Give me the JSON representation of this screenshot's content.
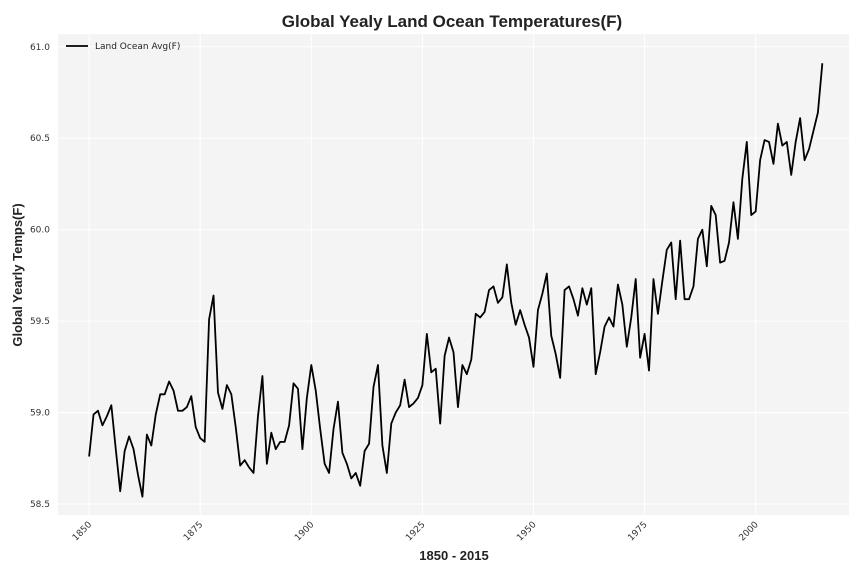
{
  "chart_data": {
    "type": "line",
    "title": "Global Yealy Land Ocean Temperatures(F)",
    "xlabel": "1850 - 2015",
    "ylabel": "Global Yearly Temps(F)",
    "xlim": [
      1843,
      2021
    ],
    "ylim": [
      58.44,
      61.07
    ],
    "xticks": [
      1850,
      1875,
      1900,
      1925,
      1950,
      1975,
      2000
    ],
    "yticks": [
      58.5,
      59.0,
      59.5,
      60.0,
      60.5,
      61.0
    ],
    "yticklabels": [
      "58.5",
      "59.0",
      "59.5",
      "60.0",
      "60.5",
      "61.0"
    ],
    "grid": true,
    "legend_position": "top-left",
    "colors": {
      "background": "#f4f4f4",
      "line": "#000000",
      "grid": "#ffffff"
    },
    "series": [
      {
        "name": "Land Ocean Avg(F)",
        "x": [
          1850,
          1851,
          1852,
          1853,
          1854,
          1855,
          1856,
          1857,
          1858,
          1859,
          1860,
          1861,
          1862,
          1863,
          1864,
          1865,
          1866,
          1867,
          1868,
          1869,
          1870,
          1871,
          1872,
          1873,
          1874,
          1875,
          1876,
          1877,
          1878,
          1879,
          1880,
          1881,
          1882,
          1883,
          1884,
          1885,
          1886,
          1887,
          1888,
          1889,
          1890,
          1891,
          1892,
          1893,
          1894,
          1895,
          1896,
          1897,
          1898,
          1899,
          1900,
          1901,
          1902,
          1903,
          1904,
          1905,
          1906,
          1907,
          1908,
          1909,
          1910,
          1911,
          1912,
          1913,
          1914,
          1915,
          1916,
          1917,
          1918,
          1919,
          1920,
          1921,
          1922,
          1923,
          1924,
          1925,
          1926,
          1927,
          1928,
          1929,
          1930,
          1931,
          1932,
          1933,
          1934,
          1935,
          1936,
          1937,
          1938,
          1939,
          1940,
          1941,
          1942,
          1943,
          1944,
          1945,
          1946,
          1947,
          1948,
          1949,
          1950,
          1951,
          1952,
          1953,
          1954,
          1955,
          1956,
          1957,
          1958,
          1959,
          1960,
          1961,
          1962,
          1963,
          1964,
          1965,
          1966,
          1967,
          1968,
          1969,
          1970,
          1971,
          1972,
          1973,
          1974,
          1975,
          1976,
          1977,
          1978,
          1979,
          1980,
          1981,
          1982,
          1983,
          1984,
          1985,
          1986,
          1987,
          1988,
          1989,
          1990,
          1991,
          1992,
          1993,
          1994,
          1995,
          1996,
          1997,
          1998,
          1999,
          2000,
          2001,
          2002,
          2003,
          2004,
          2005,
          2006,
          2007,
          2008,
          2009,
          2010,
          2011,
          2012,
          2013,
          2014,
          2015
        ],
        "values": [
          58.76,
          58.99,
          59.01,
          58.93,
          58.98,
          59.04,
          58.8,
          58.57,
          58.79,
          58.87,
          58.8,
          58.66,
          58.54,
          58.88,
          58.82,
          58.99,
          59.1,
          59.1,
          59.17,
          59.12,
          59.01,
          59.01,
          59.03,
          59.09,
          58.92,
          58.86,
          58.84,
          59.51,
          59.64,
          59.11,
          59.02,
          59.15,
          59.1,
          58.92,
          58.71,
          58.74,
          58.7,
          58.67,
          58.98,
          59.2,
          58.72,
          58.89,
          58.8,
          58.84,
          58.84,
          58.93,
          59.16,
          59.13,
          58.8,
          59.08,
          59.26,
          59.12,
          58.91,
          58.72,
          58.67,
          58.91,
          59.06,
          58.78,
          58.72,
          58.64,
          58.67,
          58.6,
          58.79,
          58.83,
          59.14,
          59.26,
          58.82,
          58.67,
          58.94,
          59.0,
          59.04,
          59.18,
          59.03,
          59.05,
          59.08,
          59.15,
          59.43,
          59.22,
          59.24,
          58.94,
          59.31,
          59.41,
          59.33,
          59.03,
          59.26,
          59.21,
          59.29,
          59.54,
          59.52,
          59.55,
          59.67,
          59.69,
          59.6,
          59.63,
          59.81,
          59.6,
          59.48,
          59.56,
          59.48,
          59.41,
          59.25,
          59.56,
          59.65,
          59.76,
          59.42,
          59.32,
          59.19,
          59.67,
          59.69,
          59.62,
          59.53,
          59.68,
          59.59,
          59.68,
          59.21,
          59.33,
          59.47,
          59.52,
          59.47,
          59.7,
          59.59,
          59.36,
          59.52,
          59.73,
          59.3,
          59.43,
          59.23,
          59.73,
          59.54,
          59.72,
          59.89,
          59.93,
          59.62,
          59.94,
          59.62,
          59.62,
          59.69,
          59.95,
          60.0,
          59.8,
          60.13,
          60.08,
          59.82,
          59.83,
          59.93,
          60.15,
          59.95,
          60.28,
          60.48,
          60.08,
          60.1,
          60.38,
          60.49,
          60.48,
          60.36,
          60.58,
          60.46,
          60.48,
          60.3,
          60.48,
          60.61,
          60.38,
          60.44,
          60.54,
          60.64,
          60.91
        ]
      }
    ]
  }
}
